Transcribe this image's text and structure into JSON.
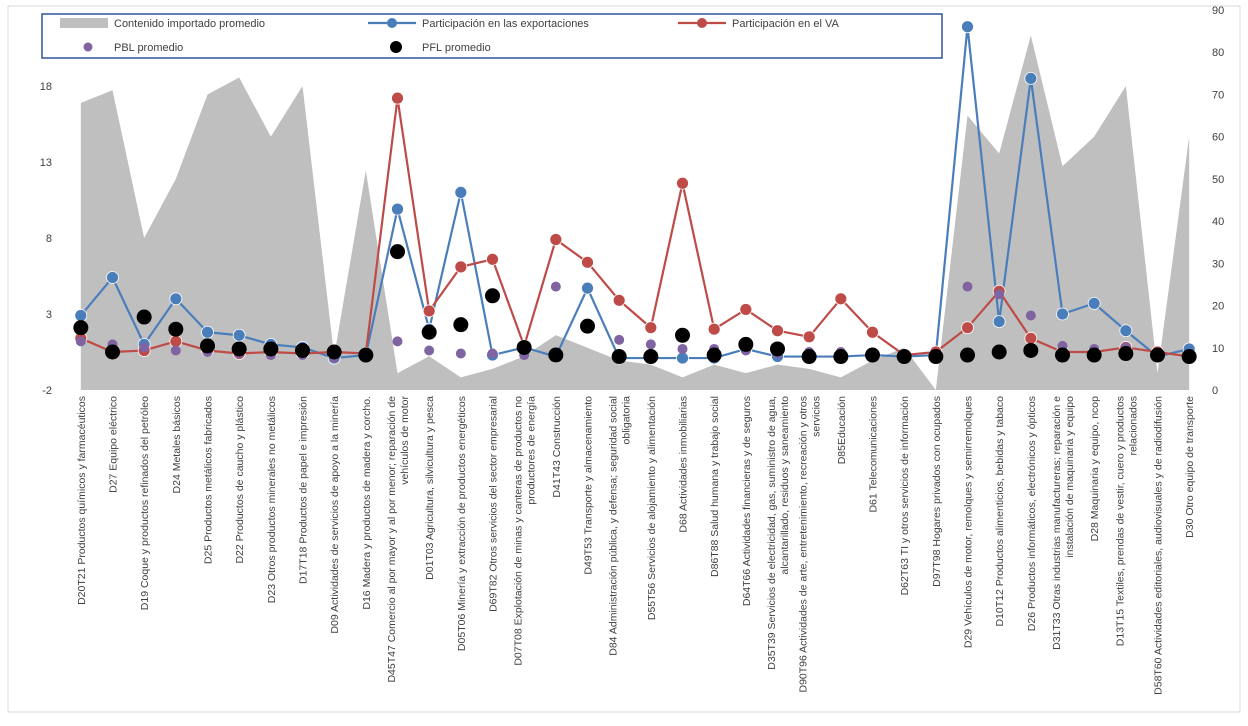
{
  "chart_data": {
    "type": "line",
    "title": "",
    "categories": [
      [
        "D20T21 Productos químicos y farmacéuticos"
      ],
      [
        "D27 Equipo eléctrico"
      ],
      [
        "D19 Coque y productos refinados del petróleo"
      ],
      [
        "D24 Metales básicos"
      ],
      [
        "D25 Productos metálicos fabricados"
      ],
      [
        "D22 Productos de caucho y plástico"
      ],
      [
        "D23 Otros productos minerales no metálicos"
      ],
      [
        "D17T18 Productos de papel e impresión"
      ],
      [
        "D09 Actividades de servicios de apoyo a la minería"
      ],
      [
        "D16 Madera y productos de madera y corcho."
      ],
      [
        "D45T47 Comercio al por mayor y al por menor; reparación de",
        "vehículos de motor"
      ],
      [
        "D01T03 Agricultura, silvicultura y pesca"
      ],
      [
        "D05T06 Minería y extracción de productos energéticos"
      ],
      [
        "D69T82 Otros servicios del sector empresarial"
      ],
      [
        "D07T08 Explotación de minas y canteras de productos no",
        "productores de energía"
      ],
      [
        "D41T43 Construcción"
      ],
      [
        "D49T53 Transporte y almacenamiento"
      ],
      [
        "D84 Administración pública, y defensa; seguridad social",
        "obligatoria"
      ],
      [
        "D55T56 Servicios de alojamiento y alimentación"
      ],
      [
        "D68 Actividades inmobiliarias"
      ],
      [
        "D86T88 Salud humana y trabajo social"
      ],
      [
        "D64T66 Actividades financieras y de seguros"
      ],
      [
        "D35T39 Servicios de electricidad, gas, suministro de agua,",
        "alcantarillado, residuos y saneamiento"
      ],
      [
        "D90T96 Actividades de arte, entretenimiento, recreación y otros",
        "servicios"
      ],
      [
        "D85Educación"
      ],
      [
        "D61 Telecomunicaciones"
      ],
      [
        "D62T63 TI y otros servicios de información"
      ],
      [
        "D97T98 Hogares privados con ocupados"
      ],
      [
        "D29 Vehículos de motor, remolques y semirremolques"
      ],
      [
        "D10T12 Productos alimenticios, bebidas y tabaco"
      ],
      [
        "D26 Productos informáticos, electrónicos y ópticos"
      ],
      [
        "D31T33 Otras industrias manufactureras; reparación e",
        "instalación de maquinaria y equipo"
      ],
      [
        "D28 Maquinaria y equipo, ncop"
      ],
      [
        "D13T15 Textiles, prendas de vestir, cuero y productos",
        "relacionados"
      ],
      [
        "D58T60 Actividades editoriales, audiovisuales y de radiodifusión"
      ],
      [
        "D30 Otro equipo de transporte"
      ]
    ],
    "left_axis": {
      "min": -2,
      "max": 23,
      "ticks": [
        -2,
        3,
        8,
        13,
        18
      ]
    },
    "right_axis": {
      "min": 0,
      "max": 90,
      "ticks": [
        0,
        10,
        20,
        30,
        40,
        50,
        60,
        70,
        80,
        90
      ]
    },
    "series": [
      {
        "name": "Contenido importado promedio",
        "kind": "area",
        "axis": "right",
        "color": "#bfbfbf",
        "values": [
          68,
          71,
          36,
          50,
          70,
          74,
          60,
          72,
          8,
          52,
          4,
          8,
          3,
          5,
          8,
          13,
          10,
          7,
          6,
          3,
          6,
          4,
          6,
          5,
          3,
          7,
          10,
          0,
          65,
          56,
          84,
          53,
          60,
          72,
          4,
          60
        ]
      },
      {
        "name": "Participación en las exportaciones",
        "kind": "line",
        "axis": "left",
        "color": "#4a7ebb",
        "values": [
          2.9,
          5.4,
          1.0,
          4.0,
          1.8,
          1.6,
          1.0,
          0.8,
          0.1,
          0.3,
          9.9,
          2.0,
          11.0,
          0.3,
          0.8,
          0.2,
          4.7,
          0.1,
          0.1,
          0.1,
          0.1,
          0.7,
          0.2,
          0.2,
          0.2,
          0.3,
          0.2,
          0.3,
          21.9,
          2.5,
          18.5,
          3.0,
          3.7,
          1.9,
          0.2,
          0.7
        ]
      },
      {
        "name": "Participación en el VA",
        "kind": "line",
        "axis": "left",
        "color": "#be4b48",
        "values": [
          1.4,
          0.5,
          0.6,
          1.2,
          0.6,
          0.4,
          0.5,
          0.4,
          0.5,
          0.4,
          17.2,
          3.2,
          6.1,
          6.6,
          0.9,
          7.9,
          6.4,
          3.9,
          2.1,
          11.6,
          2.0,
          3.3,
          1.9,
          1.5,
          4.0,
          1.8,
          0.3,
          0.5,
          2.1,
          4.5,
          1.4,
          0.5,
          0.5,
          0.8,
          0.5,
          0.2
        ]
      },
      {
        "name": "PBL promedio",
        "kind": "marker",
        "axis": "left",
        "color": "#8064a2",
        "values": [
          1.2,
          1.0,
          0.8,
          0.6,
          0.5,
          0.4,
          0.3,
          0.3,
          0.1,
          0.2,
          1.2,
          0.6,
          0.4,
          0.4,
          0.3,
          4.8,
          2.3,
          1.3,
          1.0,
          0.7,
          0.7,
          0.6,
          0.4,
          0.5,
          0.5,
          0.4,
          0.2,
          0.1,
          4.8,
          4.3,
          2.9,
          0.9,
          0.7,
          0.8,
          0.3,
          0.3
        ]
      },
      {
        "name": "PFL promedio",
        "kind": "marker",
        "axis": "left",
        "color": "#000000",
        "values": [
          2.1,
          0.5,
          2.8,
          2.0,
          0.9,
          0.7,
          0.7,
          0.6,
          0.5,
          0.3,
          7.1,
          1.8,
          2.3,
          4.2,
          0.8,
          0.3,
          2.2,
          0.2,
          0.2,
          1.6,
          0.3,
          1.0,
          0.7,
          0.2,
          0.2,
          0.3,
          0.2,
          0.2,
          0.3,
          0.5,
          0.6,
          0.3,
          0.3,
          0.4,
          0.3,
          0.2
        ]
      }
    ],
    "legend": {
      "placement": "top",
      "entries": [
        "Contenido importado promedio",
        "Participación en las exportaciones",
        "Participación en el VA",
        "PBL promedio",
        "PFL promedio"
      ]
    },
    "grid": false
  }
}
